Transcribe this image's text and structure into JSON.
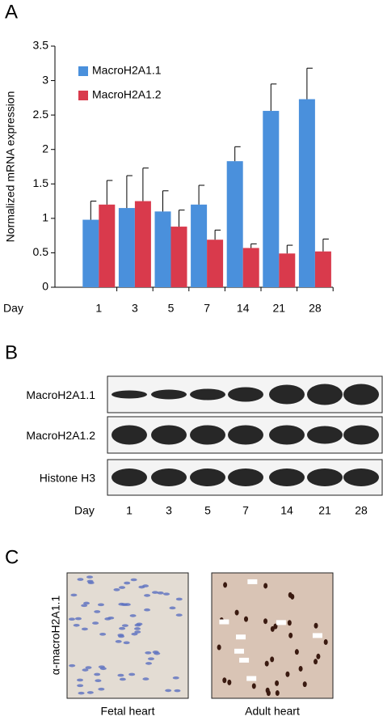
{
  "panels": {
    "a": "A",
    "b": "B",
    "c": "C"
  },
  "chart_data": {
    "type": "bar",
    "y_label": "Normalized mRNA expression",
    "x_label": "Day",
    "categories": [
      "1",
      "3",
      "5",
      "7",
      "14",
      "21",
      "28"
    ],
    "series": [
      {
        "name": "MacroH2A1.1",
        "color": "#4a90dc",
        "values": [
          0.98,
          1.15,
          1.1,
          1.2,
          1.83,
          2.56,
          2.73
        ],
        "errors": [
          0.27,
          0.47,
          0.3,
          0.28,
          0.21,
          0.39,
          0.45
        ]
      },
      {
        "name": "MacroH2A1.2",
        "color": "#d93a4c",
        "values": [
          1.2,
          1.25,
          0.88,
          0.69,
          0.57,
          0.49,
          0.52
        ],
        "errors": [
          0.35,
          0.48,
          0.24,
          0.14,
          0.06,
          0.12,
          0.18
        ]
      }
    ],
    "ylim": [
      0,
      3.5
    ],
    "yticks": [
      0,
      0.5,
      1,
      1.5,
      2,
      2.5,
      3,
      3.5
    ],
    "legend": "upper-left"
  },
  "blot": {
    "rows": [
      "MacroH2A1.1",
      "MacroH2A1.2",
      "Histone H3"
    ],
    "day_label": "Day",
    "days": [
      "1",
      "3",
      "5",
      "7",
      "14",
      "21",
      "28"
    ]
  },
  "histology": {
    "stain_label": "α-macroH2A1.1",
    "captions": [
      "Fetal heart",
      "Adult heart"
    ]
  }
}
